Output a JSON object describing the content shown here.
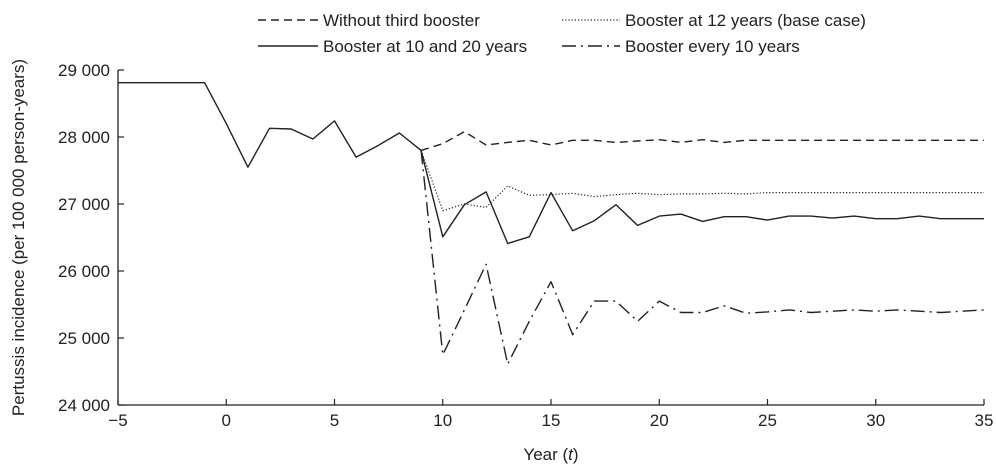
{
  "chart_data": {
    "type": "line",
    "xlabel": "Year (",
    "xlabel_var": "t",
    "xlabel_tail": ")",
    "ylabel": "Pertussis incidence (per 100 000 person-years)",
    "xlim": [
      -5,
      35
    ],
    "ylim": [
      24000,
      29000
    ],
    "xticks": [
      -5,
      0,
      5,
      10,
      15,
      20,
      25,
      30,
      35
    ],
    "yticks": [
      24000,
      25000,
      26000,
      27000,
      28000,
      29000
    ],
    "xtick_labels": [
      "−5",
      "0",
      "5",
      "10",
      "15",
      "20",
      "25",
      "30",
      "35"
    ],
    "ytick_labels": [
      "24 000",
      "25 000",
      "26 000",
      "27 000",
      "28 000",
      "29 000"
    ],
    "legend_position": "top",
    "series": [
      {
        "name": "Without third booster",
        "style": "dashed",
        "x": [
          9,
          10,
          11,
          12,
          13,
          14,
          15,
          16,
          17,
          18,
          19,
          20,
          21,
          22,
          23,
          24,
          25,
          26,
          27,
          28,
          29,
          30,
          31,
          32,
          33,
          34,
          35
        ],
        "y": [
          27800,
          27900,
          28080,
          27880,
          27920,
          27950,
          27880,
          27950,
          27950,
          27920,
          27940,
          27960,
          27920,
          27960,
          27920,
          27950,
          27950,
          27950,
          27950,
          27950,
          27950,
          27950,
          27950,
          27950,
          27950,
          27950,
          27950
        ]
      },
      {
        "name": "Booster at 12 years (base case)",
        "style": "dotted",
        "x": [
          9,
          10,
          11,
          12,
          13,
          14,
          15,
          16,
          17,
          18,
          19,
          20,
          21,
          22,
          23,
          24,
          25,
          26,
          27,
          28,
          29,
          30,
          31,
          32,
          33,
          34,
          35
        ],
        "y": [
          27800,
          26900,
          27000,
          26950,
          27270,
          27130,
          27140,
          27160,
          27110,
          27140,
          27160,
          27140,
          27150,
          27150,
          27160,
          27150,
          27170,
          27170,
          27170,
          27170,
          27170,
          27170,
          27170,
          27170,
          27170,
          27170,
          27170
        ]
      },
      {
        "name": "Booster at 10 and 20 years",
        "style": "solid",
        "x": [
          -5,
          -4,
          -3,
          -2,
          -1,
          0,
          1,
          2,
          3,
          4,
          5,
          6,
          7,
          8,
          9,
          10,
          11,
          12,
          13,
          14,
          15,
          16,
          17,
          18,
          19,
          20,
          21,
          22,
          23,
          24,
          25,
          26,
          27,
          28,
          29,
          30,
          31,
          32,
          33,
          34,
          35
        ],
        "y": [
          28810,
          28810,
          28810,
          28810,
          28810,
          28200,
          27550,
          28130,
          28120,
          27970,
          28240,
          27700,
          27870,
          28060,
          27800,
          26510,
          26990,
          27180,
          26410,
          26510,
          27170,
          26600,
          26750,
          26990,
          26680,
          26820,
          26850,
          26740,
          26810,
          26810,
          26760,
          26820,
          26820,
          26790,
          26820,
          26780,
          26780,
          26820,
          26780,
          26780,
          26780
        ]
      },
      {
        "name": "Booster every 10 years",
        "style": "dashdot",
        "x": [
          9,
          10,
          11,
          12,
          13,
          14,
          15,
          16,
          17,
          18,
          19,
          20,
          21,
          22,
          23,
          24,
          25,
          26,
          27,
          28,
          29,
          30,
          31,
          32,
          33,
          34,
          35
        ],
        "y": [
          27800,
          24750,
          25420,
          26100,
          24610,
          25250,
          25840,
          25050,
          25550,
          25550,
          25250,
          25550,
          25380,
          25380,
          25480,
          25370,
          25390,
          25420,
          25380,
          25400,
          25420,
          25400,
          25420,
          25400,
          25380,
          25400,
          25420
        ]
      }
    ]
  }
}
